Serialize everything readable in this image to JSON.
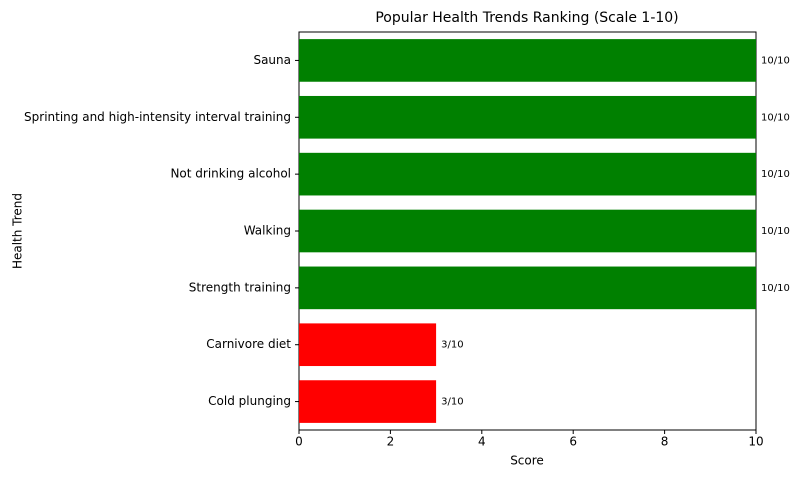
{
  "chart_data": {
    "type": "barh",
    "title": "Popular Health Trends Ranking (Scale 1-10)",
    "x_label": "Score",
    "y_label": "Health Trend",
    "categories": [
      "Sauna",
      "Sprinting and high-intensity interval training",
      "Not drinking alcohol",
      "Walking",
      "Strength training",
      "Carnivore diet",
      "Cold plunging"
    ],
    "values": [
      10,
      10,
      10,
      10,
      10,
      3,
      3
    ],
    "value_labels": [
      "10/10",
      "10/10",
      "10/10",
      "10/10",
      "10/10",
      "3/10",
      "3/10"
    ],
    "colors": [
      "#008000",
      "#008000",
      "#008000",
      "#008000",
      "#008000",
      "#ff0000",
      "#ff0000"
    ],
    "xlim": [
      0,
      10
    ],
    "xticks": [
      0,
      2,
      4,
      6,
      8,
      10
    ]
  }
}
